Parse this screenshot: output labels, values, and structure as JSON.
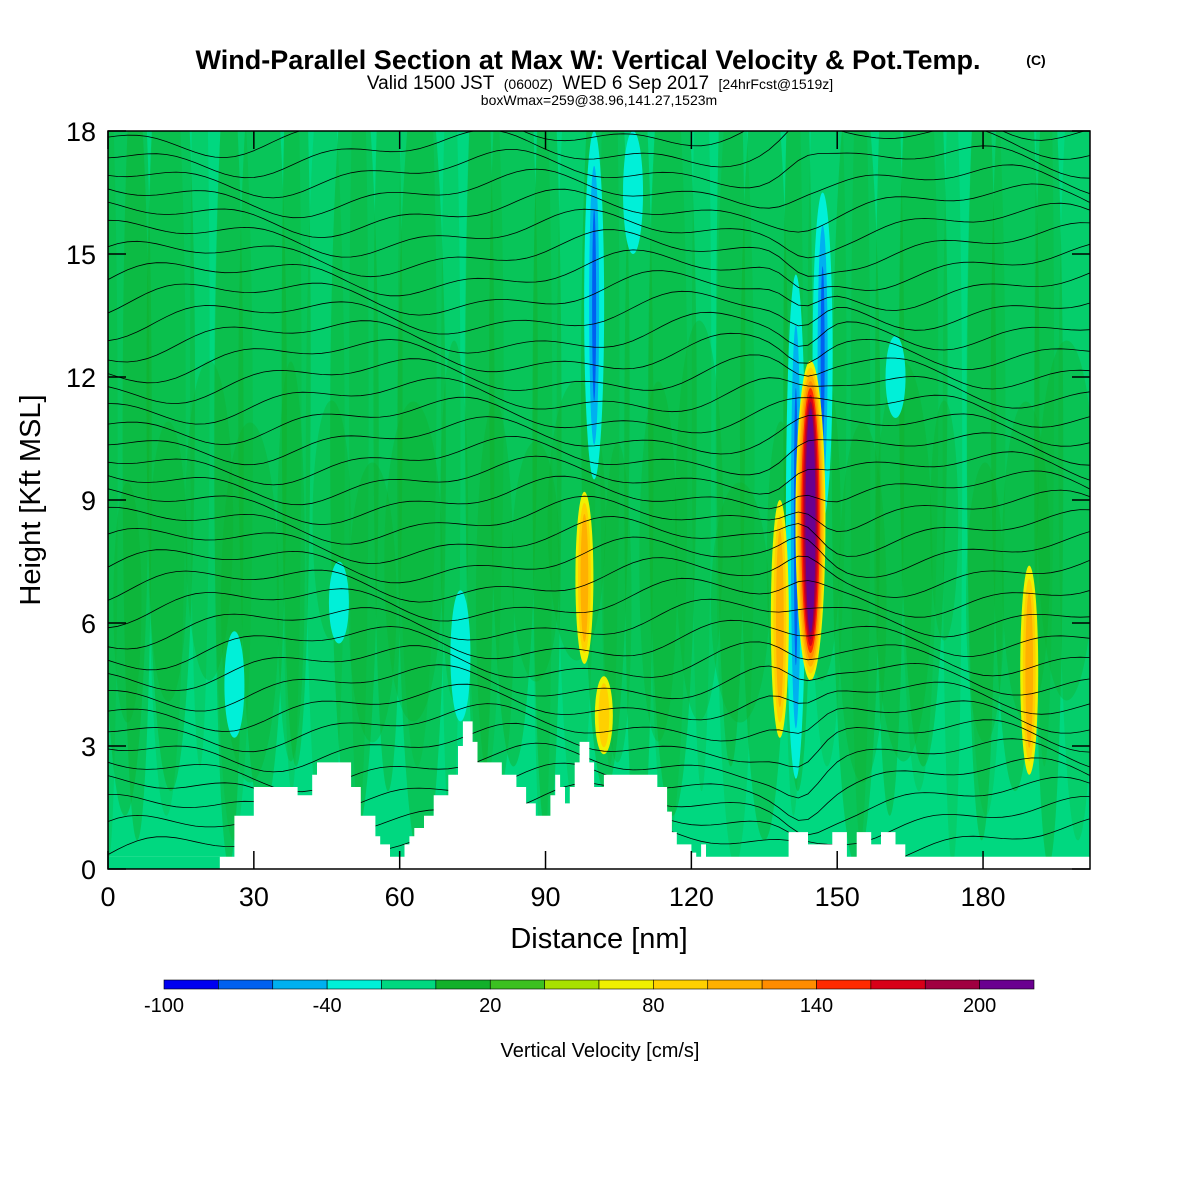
{
  "title": {
    "main": "Wind-Parallel Section at Max W: Vertical Velocity & Pot.Temp.",
    "copyright": "(C)",
    "valid_prefix": "Valid 1500 JST",
    "valid_utc": "(0600Z)",
    "valid_date": "WED 6 Sep 2017",
    "forecast": "[24hrFcst@1519z]",
    "box": "boxWmax=259@38.96,141.27,1523m"
  },
  "chart_data": {
    "type": "heatmap",
    "xlabel": "Distance [nm]",
    "ylabel": "Height [Kft MSL]",
    "xlim": [
      0,
      202
    ],
    "ylim": [
      0,
      18
    ],
    "x_ticks": [
      "0",
      "30",
      "60",
      "90",
      "120",
      "150",
      "180"
    ],
    "y_ticks": [
      "0",
      "3",
      "6",
      "9",
      "12",
      "15",
      "18"
    ],
    "terrain": {
      "x": [
        0,
        23,
        26,
        30,
        34,
        39,
        42,
        43,
        47,
        50,
        52,
        55,
        56,
        57,
        58,
        59,
        60,
        61,
        62,
        63,
        65,
        67,
        70,
        72,
        73,
        74,
        75,
        76,
        78,
        81,
        84,
        86,
        88,
        90,
        91,
        92,
        93,
        94,
        95,
        96,
        97,
        98,
        99,
        100,
        102,
        104,
        105,
        107,
        111,
        113,
        115,
        116,
        117,
        119,
        120,
        121,
        122,
        123,
        125,
        127,
        129,
        131,
        133,
        135,
        137,
        140,
        144,
        149,
        152,
        154,
        157,
        159,
        162,
        164,
        166,
        180,
        202
      ],
      "y": [
        0.3,
        0.3,
        1.3,
        2.0,
        2.0,
        1.8,
        2.3,
        2.6,
        2.6,
        2.0,
        1.3,
        0.8,
        0.6,
        0.6,
        0.3,
        0.3,
        0.3,
        0.6,
        0.8,
        1.0,
        1.3,
        1.8,
        2.3,
        3.0,
        3.6,
        3.6,
        3.1,
        2.6,
        2.6,
        2.3,
        2.0,
        1.6,
        1.3,
        1.3,
        1.8,
        2.3,
        2.0,
        1.6,
        2.0,
        2.6,
        3.1,
        3.1,
        2.6,
        2.0,
        2.3,
        2.3,
        2.3,
        2.3,
        2.3,
        2.0,
        1.4,
        0.9,
        0.6,
        0.6,
        0.4,
        0.3,
        0.6,
        0.3,
        0.3,
        0.3,
        0.3,
        0.3,
        0.3,
        0.3,
        0.3,
        0.9,
        0.6,
        0.9,
        0.3,
        0.9,
        0.6,
        0.9,
        0.6,
        0.3,
        0.3,
        0.3,
        0.3
      ]
    },
    "updrafts": [
      {
        "x": 144.5,
        "y_bottom": 4.6,
        "y_top": 12.4,
        "peak": 259
      },
      {
        "x": 138.2,
        "y_bottom": 3.2,
        "y_top": 9.0,
        "peak": 90
      },
      {
        "x": 98.0,
        "y_bottom": 5.0,
        "y_top": 9.2,
        "peak": 85
      },
      {
        "x": 102.0,
        "y_bottom": 2.8,
        "y_top": 4.7,
        "peak": 75
      },
      {
        "x": 189.5,
        "y_bottom": 2.3,
        "y_top": 7.4,
        "peak": 90
      }
    ],
    "downdrafts": [
      {
        "x": 141.5,
        "y_bottom": 2.2,
        "y_top": 14.5,
        "peak": -60
      },
      {
        "x": 147.0,
        "y_bottom": 8.5,
        "y_top": 16.5,
        "peak": -60
      },
      {
        "x": 100.0,
        "y_bottom": 9.5,
        "y_top": 18.0,
        "peak": -60
      },
      {
        "x": 108.0,
        "y_bottom": 15.0,
        "y_top": 18.0,
        "peak": -35
      },
      {
        "x": 72.5,
        "y_bottom": 3.6,
        "y_top": 6.8,
        "peak": -35
      },
      {
        "x": 47.5,
        "y_bottom": 5.5,
        "y_top": 7.5,
        "peak": -35
      },
      {
        "x": 26.0,
        "y_bottom": 3.2,
        "y_top": 5.8,
        "peak": -35
      },
      {
        "x": 162.0,
        "y_bottom": 11.0,
        "y_top": 13.0,
        "peak": -30
      }
    ]
  },
  "colorbar": {
    "label": "Vertical Velocity [cm/s]",
    "tick_labels": [
      "-100",
      "-40",
      "20",
      "80",
      "140",
      "200"
    ],
    "bins": [
      "#0000f0",
      "#0060f0",
      "#00b0f0",
      "#00f0d8",
      "#00d880",
      "#12b02a",
      "#3cc020",
      "#a8e000",
      "#f0f000",
      "#ffd000",
      "#ffb000",
      "#ff8c00",
      "#ff2a00",
      "#d80018",
      "#a00040",
      "#6a0090"
    ]
  }
}
